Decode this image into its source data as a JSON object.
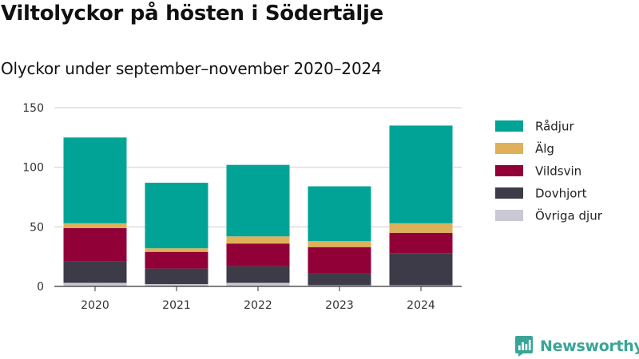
{
  "title": "Viltolyckor på hösten i Södertälje",
  "subtitle": "Olyckor under september–november 2020–2024",
  "brand": {
    "name": "Newsworthy",
    "icon": "newsworthy-logo-icon",
    "color": "#3aa597"
  },
  "chart_data": {
    "type": "bar",
    "stacked": true,
    "title": "Viltolyckor på hösten i Södertälje",
    "subtitle": "Olyckor under september–november 2020–2024",
    "xlabel": "",
    "ylabel": "",
    "categories": [
      "2020",
      "2021",
      "2022",
      "2023",
      "2024"
    ],
    "ylim": [
      0,
      150
    ],
    "yticks": [
      0,
      50,
      100,
      150
    ],
    "grid": true,
    "legend_position": "right",
    "series": [
      {
        "name": "Övriga djur",
        "color": "#cbc8d6",
        "values": [
          3,
          2,
          3,
          1,
          1
        ]
      },
      {
        "name": "Dovhjort",
        "color": "#3d3b48",
        "values": [
          18,
          13,
          14,
          10,
          27
        ]
      },
      {
        "name": "Vildsvin",
        "color": "#920038",
        "values": [
          28,
          14,
          19,
          22,
          17
        ]
      },
      {
        "name": "Älg",
        "color": "#deb05a",
        "values": [
          4,
          3,
          6,
          5,
          8
        ]
      },
      {
        "name": "Rådjur",
        "color": "#00a396",
        "values": [
          72,
          55,
          60,
          46,
          82
        ]
      }
    ],
    "legend_order": [
      "Rådjur",
      "Älg",
      "Vildsvin",
      "Dovhjort",
      "Övriga djur"
    ]
  }
}
